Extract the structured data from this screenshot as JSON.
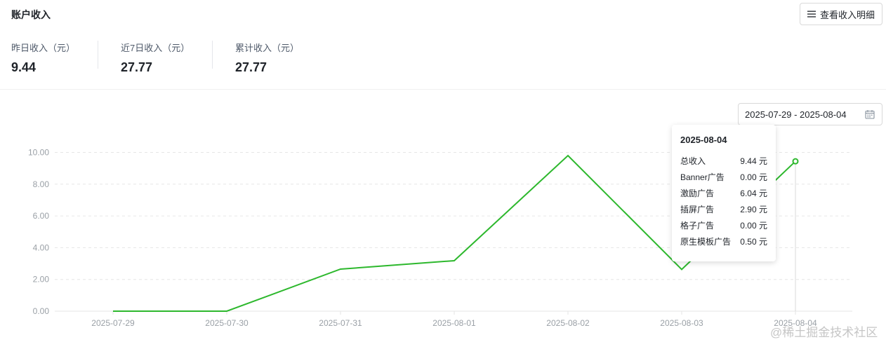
{
  "header": {
    "title": "账户收入",
    "detail_button": "查看收入明细"
  },
  "stats": [
    {
      "label": "昨日收入（元）",
      "value": "9.44"
    },
    {
      "label": "近7日收入（元）",
      "value": "27.77"
    },
    {
      "label": "累计收入（元）",
      "value": "27.77"
    }
  ],
  "date_range": "2025-07-29 - 2025-08-04",
  "icons": {
    "detail_button_icon": "list-icon",
    "date_picker_icon": "calendar-icon"
  },
  "colors": {
    "line": "#2db82d",
    "grid": "#e6e6e6",
    "axis_text": "#9aa0a6"
  },
  "chart_data": {
    "type": "line",
    "categories": [
      "2025-07-29",
      "2025-07-30",
      "2025-07-31",
      "2025-08-01",
      "2025-08-02",
      "2025-08-03",
      "2025-08-04"
    ],
    "series": [
      {
        "values": [
          0.0,
          0.0,
          2.65,
          3.18,
          9.8,
          2.63,
          9.44
        ]
      }
    ],
    "ylim": [
      0,
      10
    ],
    "yticks": [
      "0.00",
      "2.00",
      "4.00",
      "6.00",
      "8.00",
      "10.00"
    ],
    "grid": true,
    "highlighted_index": 6
  },
  "tooltip": {
    "title": "2025-08-04",
    "rows": [
      {
        "label": "总收入",
        "value": "9.44 元"
      },
      {
        "label": "Banner广告",
        "value": "0.00 元"
      },
      {
        "label": "激励广告",
        "value": "6.04 元"
      },
      {
        "label": "插屏广告",
        "value": "2.90 元"
      },
      {
        "label": "格子广告",
        "value": "0.00 元"
      },
      {
        "label": "原生模板广告",
        "value": "0.50 元"
      }
    ]
  },
  "watermark": "@稀土掘金技术社区"
}
